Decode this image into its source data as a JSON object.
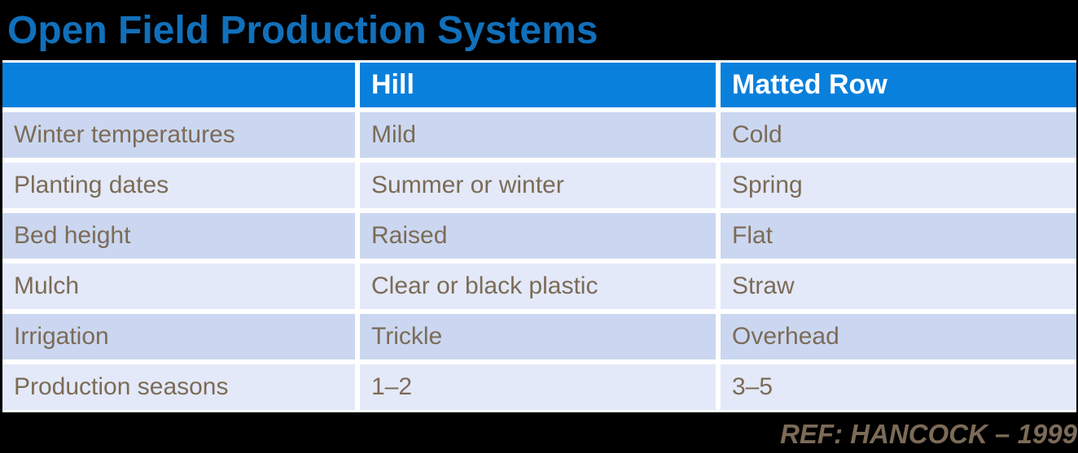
{
  "header": {
    "title": "Open Field Production Systems"
  },
  "table": {
    "columns": [
      "",
      "Hill",
      "Matted Row"
    ],
    "rows": [
      {
        "label": "Winter temperatures",
        "hill": "Mild",
        "matted_row": "Cold"
      },
      {
        "label": "Planting dates",
        "hill": "Summer or winter",
        "matted_row": "Spring"
      },
      {
        "label": "Bed height",
        "hill": "Raised",
        "matted_row": "Flat"
      },
      {
        "label": "Mulch",
        "hill": "Clear or black plastic",
        "matted_row": "Straw"
      },
      {
        "label": "Irrigation",
        "hill": "Trickle",
        "matted_row": "Overhead"
      },
      {
        "label": "Production seasons",
        "hill": "1–2",
        "matted_row": "3–5"
      }
    ]
  },
  "footer": {
    "reference": "REF: HANCOCK – 1999"
  },
  "colors": {
    "title_blue": "#1170BB",
    "header_blue": "#0980DC",
    "row_odd": "#CBD7F0",
    "row_even": "#E3E9F8",
    "text_brown": "#7C6B57",
    "separator_white": "#FFFFFF",
    "background_black": "#000000"
  }
}
